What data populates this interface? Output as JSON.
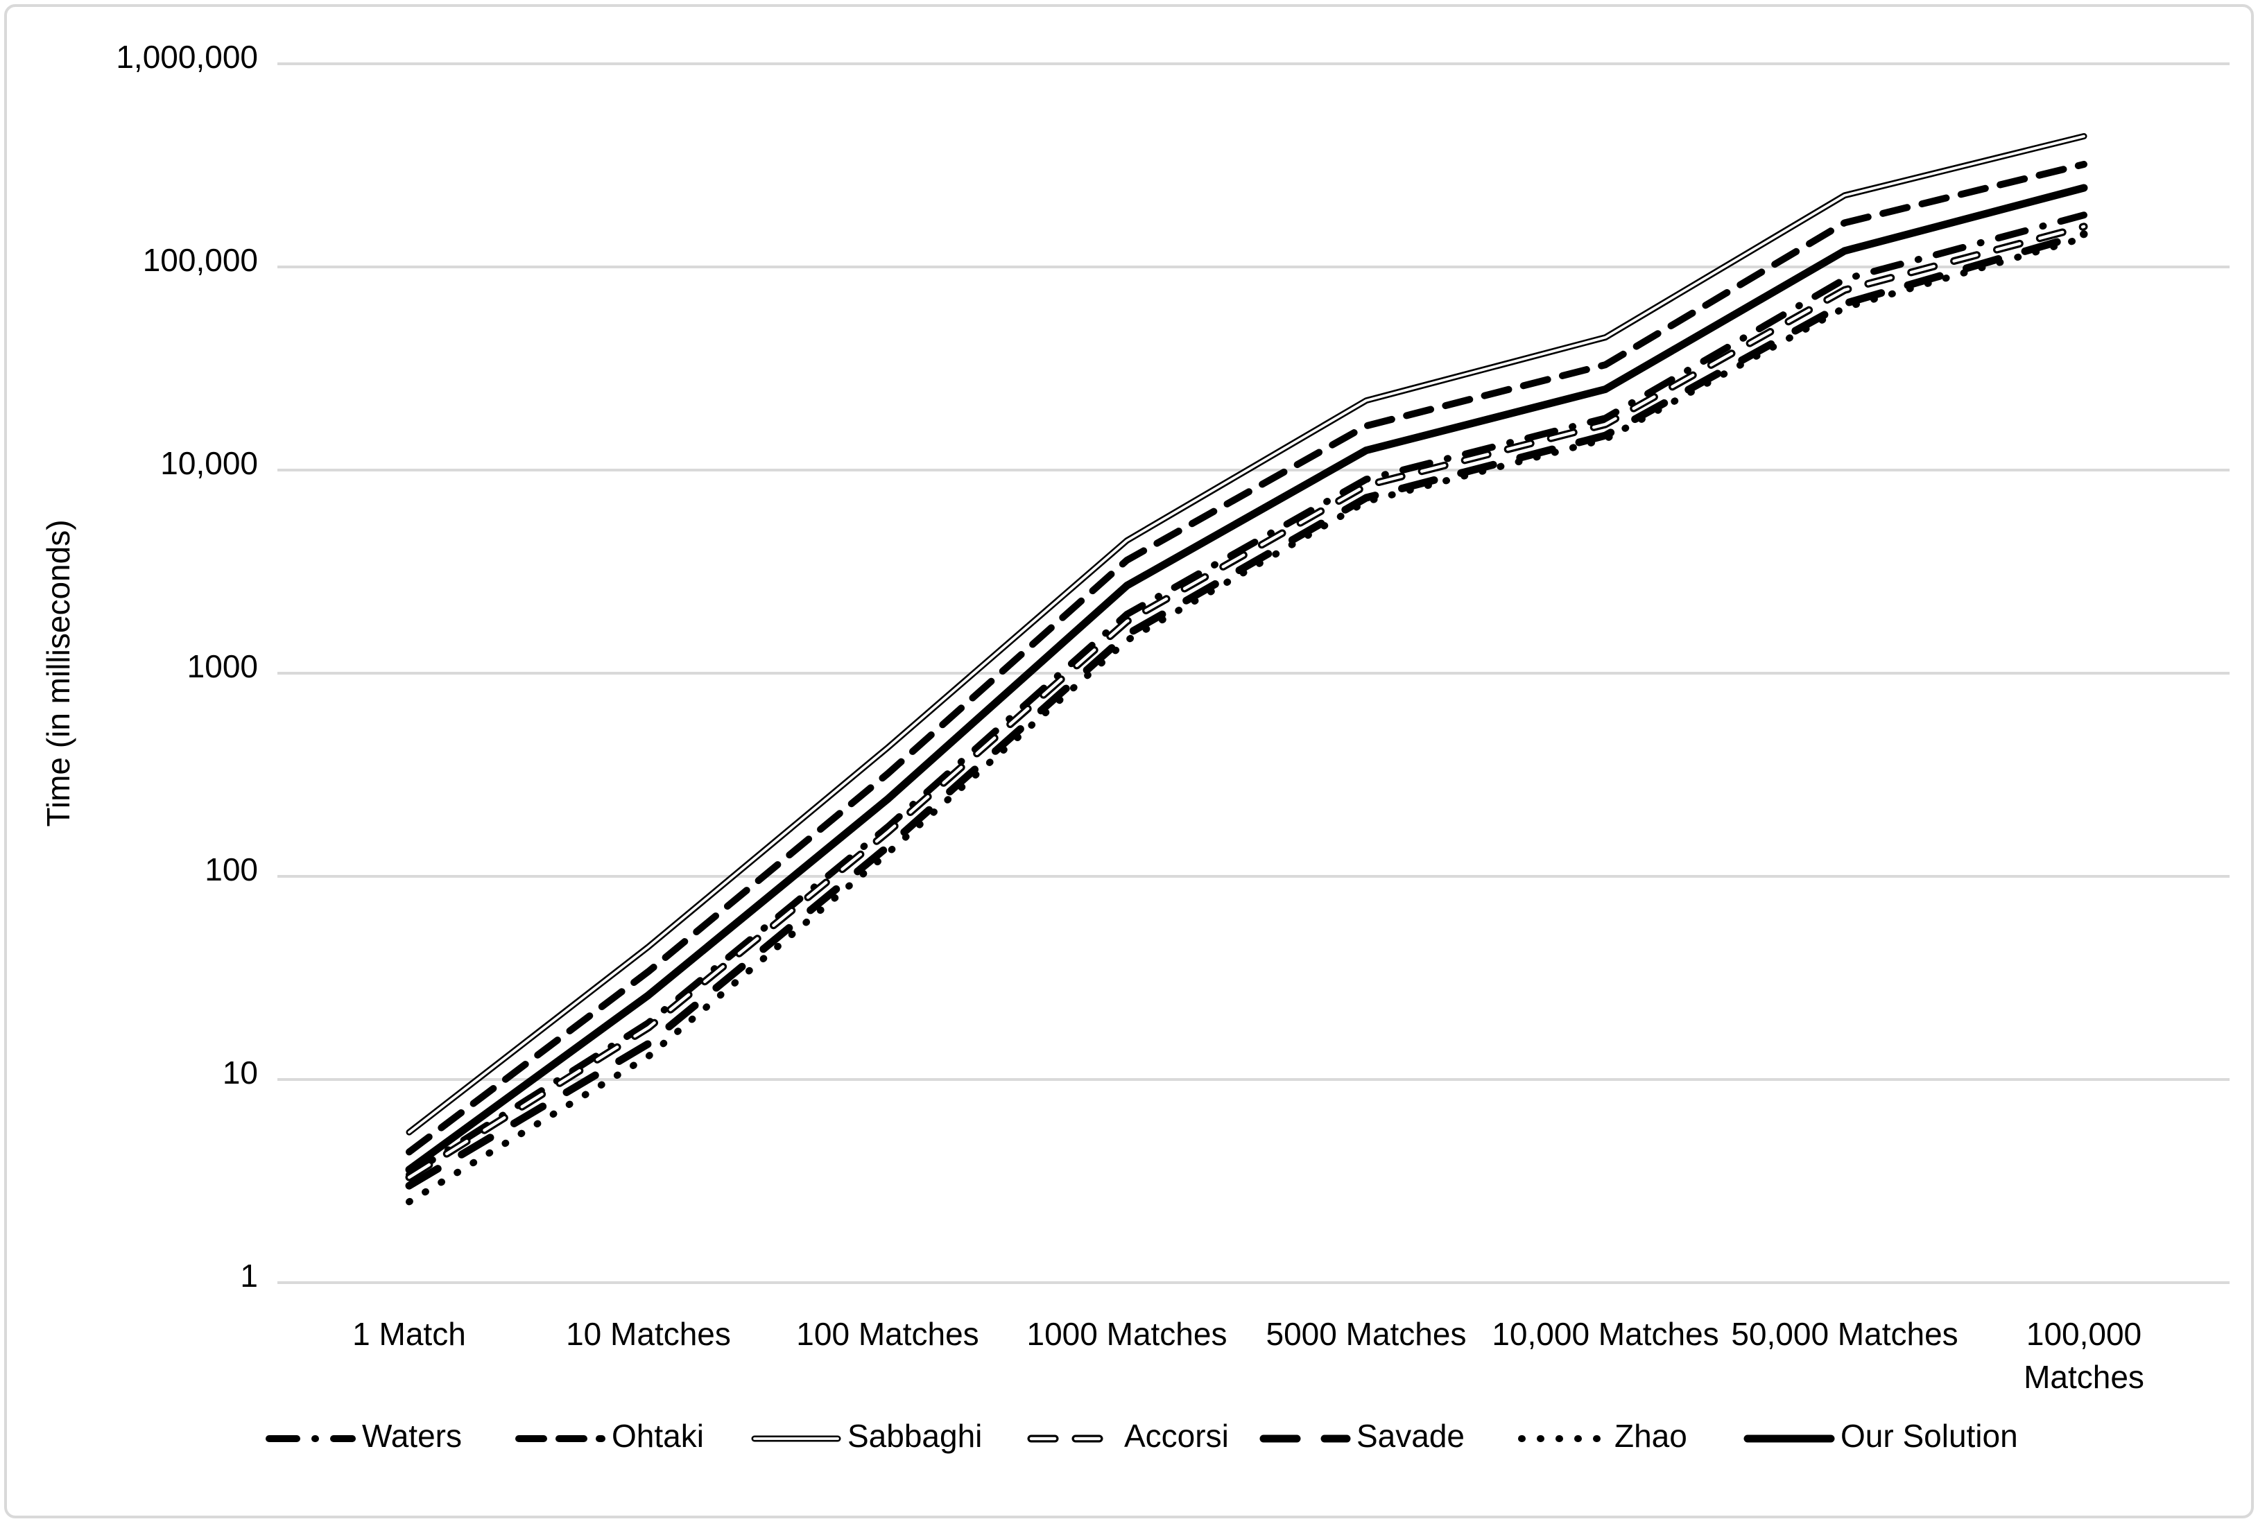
{
  "chart_data": {
    "type": "line",
    "title": "",
    "xlabel": "",
    "ylabel": "Time (in milliseconds)",
    "y_scale": "log",
    "ylim": [
      1,
      1000000
    ],
    "grid": "horizontal-only",
    "legend_position": "bottom",
    "line_color": "#000000",
    "grid_color": "#D9D9D9",
    "frame_border_color": "#D9D9D9",
    "background_color": "#FFFFFF",
    "y_ticks": [
      {
        "label": "1",
        "value": 1
      },
      {
        "label": "10",
        "value": 10
      },
      {
        "label": "100",
        "value": 100
      },
      {
        "label": "1000",
        "value": 1000
      },
      {
        "label": "10,000",
        "value": 10000
      },
      {
        "label": "100,000",
        "value": 100000
      },
      {
        "label": "1,000,000",
        "value": 1000000
      }
    ],
    "categories": [
      [
        "1 Match"
      ],
      [
        "10 Matches"
      ],
      [
        "100 Matches"
      ],
      [
        "1000 Matches"
      ],
      [
        "5000 Matches"
      ],
      [
        "10,000 Matches"
      ],
      [
        "50,000 Matches"
      ],
      [
        "100,000",
        "Matches"
      ]
    ],
    "x_values": [
      1,
      10,
      100,
      1000,
      5000,
      10000,
      50000,
      100000
    ],
    "series": [
      {
        "name": "Waters",
        "line_style": "dash-dot",
        "values": [
          3.4,
          19,
          175,
          1950,
          9000,
          18000,
          87000,
          180000
        ]
      },
      {
        "name": "Ohtaki",
        "line_style": "dash",
        "values": [
          4.4,
          34,
          320,
          3600,
          16500,
          33000,
          165000,
          320000
        ]
      },
      {
        "name": "Sabbaghi",
        "line_style": "double",
        "values": [
          5.5,
          45,
          430,
          4500,
          22000,
          45000,
          225000,
          440000
        ]
      },
      {
        "name": "Accorsi",
        "line_style": "hollow-dash",
        "values": [
          3.3,
          18,
          165,
          1800,
          8400,
          16800,
          77000,
          158000
        ]
      },
      {
        "name": "Savade",
        "line_style": "long-dash",
        "values": [
          3.0,
          15,
          140,
          1550,
          7300,
          14800,
          66000,
          145000
        ]
      },
      {
        "name": "Zhao",
        "line_style": "dot",
        "values": [
          2.5,
          13,
          130,
          1450,
          7000,
          14200,
          63000,
          139000
        ]
      },
      {
        "name": "Our Solution",
        "line_style": "solid",
        "values": [
          3.6,
          26,
          240,
          2700,
          12500,
          25000,
          120000,
          245000
        ]
      }
    ]
  }
}
